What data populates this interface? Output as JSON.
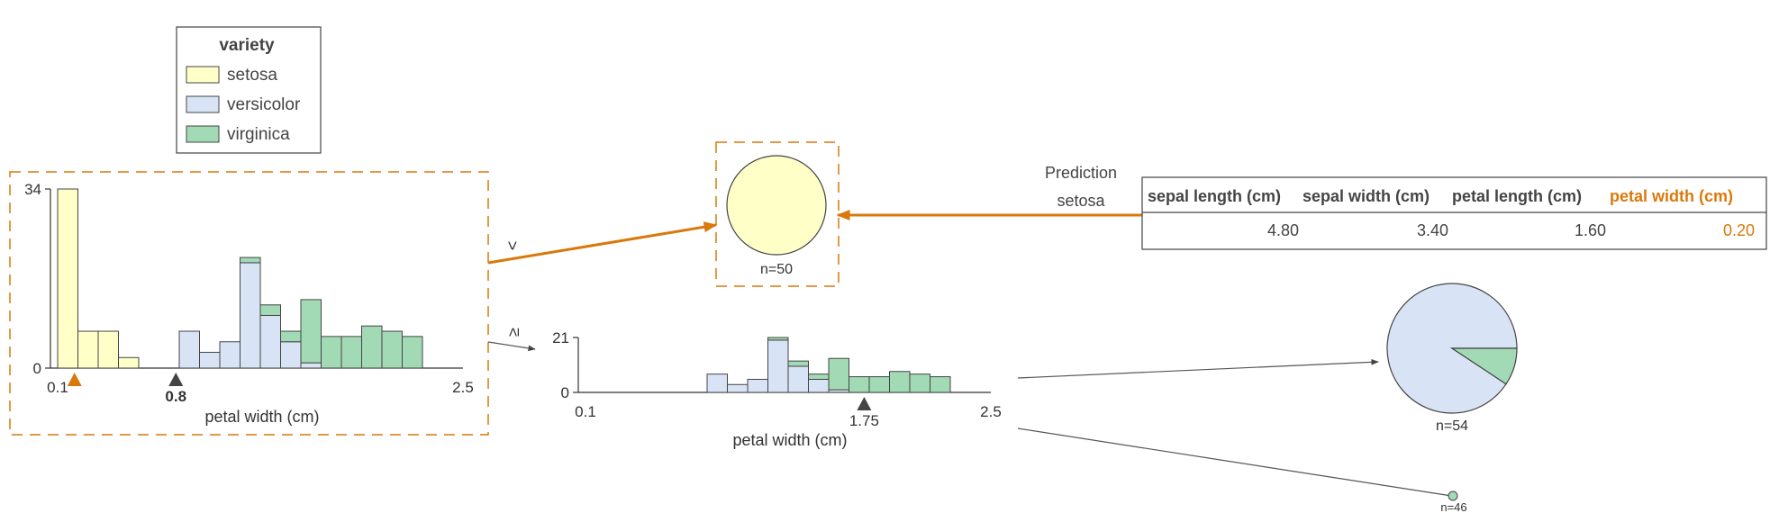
{
  "legend": {
    "title": "variety",
    "items": [
      {
        "label": "setosa",
        "color": "#ffffc8"
      },
      {
        "label": "versicolor",
        "color": "#d8e4f5"
      },
      {
        "label": "virginica",
        "color": "#a2dab5"
      }
    ]
  },
  "accent_color": "#d9790b",
  "root_split": {
    "feature_label": "petal width (cm)",
    "xlim": [
      0.1,
      2.5
    ],
    "x_tick_labels": [
      "0.1",
      "2.5"
    ],
    "y_tick_labels": [
      "0",
      "34"
    ],
    "ylim": [
      0,
      34
    ],
    "threshold_label": "0.8",
    "threshold": 0.8,
    "instance_value": 0.2,
    "branch_left_symbol": "<",
    "branch_right_symbol": "≥"
  },
  "second_split": {
    "feature_label": "petal width (cm)",
    "xlim": [
      0.1,
      2.5
    ],
    "x_tick_labels": [
      "0.1",
      "2.5"
    ],
    "y_tick_labels": [
      "0",
      "21"
    ],
    "ylim": [
      0,
      21
    ],
    "threshold_label": "1.75",
    "threshold": 1.75
  },
  "leaves": {
    "setosa_leaf": {
      "n_label": "n=50"
    },
    "mixed_leaf": {
      "n_label": "n=54",
      "fractions": {
        "versicolor": 0.907,
        "virginica": 0.093
      }
    },
    "small_leaf": {
      "n_label": "n=46"
    }
  },
  "prediction": {
    "label": "Prediction",
    "value": "setosa"
  },
  "instance_table": {
    "headers": [
      "sepal length (cm)",
      "sepal width (cm)",
      "petal length (cm)",
      "petal width (cm)"
    ],
    "values": [
      "4.80",
      "3.40",
      "1.60",
      "0.20"
    ],
    "highlighted_column": 3
  },
  "chart_data": [
    {
      "type": "bar",
      "title": "",
      "xlabel": "petal width (cm)",
      "ylabel": "",
      "ylim": [
        0,
        34
      ],
      "categories": [
        "0.10-0.22",
        "0.22-0.34",
        "0.34-0.46",
        "0.46-0.58",
        "0.58-0.70",
        "0.70-0.82",
        "0.82-0.94",
        "0.94-1.06",
        "1.06-1.18",
        "1.18-1.30",
        "1.30-1.42",
        "1.42-1.54",
        "1.54-1.66",
        "1.66-1.78",
        "1.78-1.90",
        "1.90-2.02",
        "2.02-2.14",
        "2.14-2.26",
        "2.26-2.38",
        "2.38-2.50"
      ],
      "series": [
        {
          "name": "setosa",
          "values": [
            34,
            7,
            7,
            2,
            0,
            0,
            0,
            0,
            0,
            0,
            0,
            0,
            0,
            0,
            0,
            0,
            0,
            0,
            0,
            0
          ]
        },
        {
          "name": "versicolor",
          "values": [
            0,
            0,
            0,
            0,
            0,
            0,
            7,
            3,
            5,
            20,
            10,
            5,
            1,
            0,
            0,
            0,
            0,
            0,
            0,
            0
          ]
        },
        {
          "name": "virginica",
          "values": [
            0,
            0,
            0,
            0,
            0,
            0,
            0,
            0,
            0,
            1,
            2,
            2,
            12,
            6,
            6,
            8,
            7,
            6,
            0,
            0
          ]
        }
      ]
    },
    {
      "type": "bar",
      "title": "",
      "xlabel": "petal width (cm)",
      "ylabel": "",
      "ylim": [
        0,
        21
      ],
      "categories": [
        "0.10-0.22",
        "0.22-0.34",
        "0.34-0.46",
        "0.46-0.58",
        "0.58-0.70",
        "0.70-0.82",
        "0.82-0.94",
        "0.94-1.06",
        "1.06-1.18",
        "1.18-1.30",
        "1.30-1.42",
        "1.42-1.54",
        "1.54-1.66",
        "1.66-1.78",
        "1.78-1.90",
        "1.90-2.02",
        "2.02-2.14",
        "2.14-2.26",
        "2.26-2.38",
        "2.38-2.50"
      ],
      "series": [
        {
          "name": "setosa",
          "values": [
            0,
            0,
            0,
            0,
            0,
            0,
            0,
            0,
            0,
            0,
            0,
            0,
            0,
            0,
            0,
            0,
            0,
            0,
            0,
            0
          ]
        },
        {
          "name": "versicolor",
          "values": [
            0,
            0,
            0,
            0,
            0,
            0,
            7,
            3,
            5,
            20,
            10,
            5,
            1,
            0,
            0,
            0,
            0,
            0,
            0,
            0
          ]
        },
        {
          "name": "virginica",
          "values": [
            0,
            0,
            0,
            0,
            0,
            0,
            0,
            0,
            0,
            1,
            2,
            2,
            12,
            6,
            6,
            8,
            7,
            6,
            0,
            0
          ]
        }
      ]
    }
  ]
}
